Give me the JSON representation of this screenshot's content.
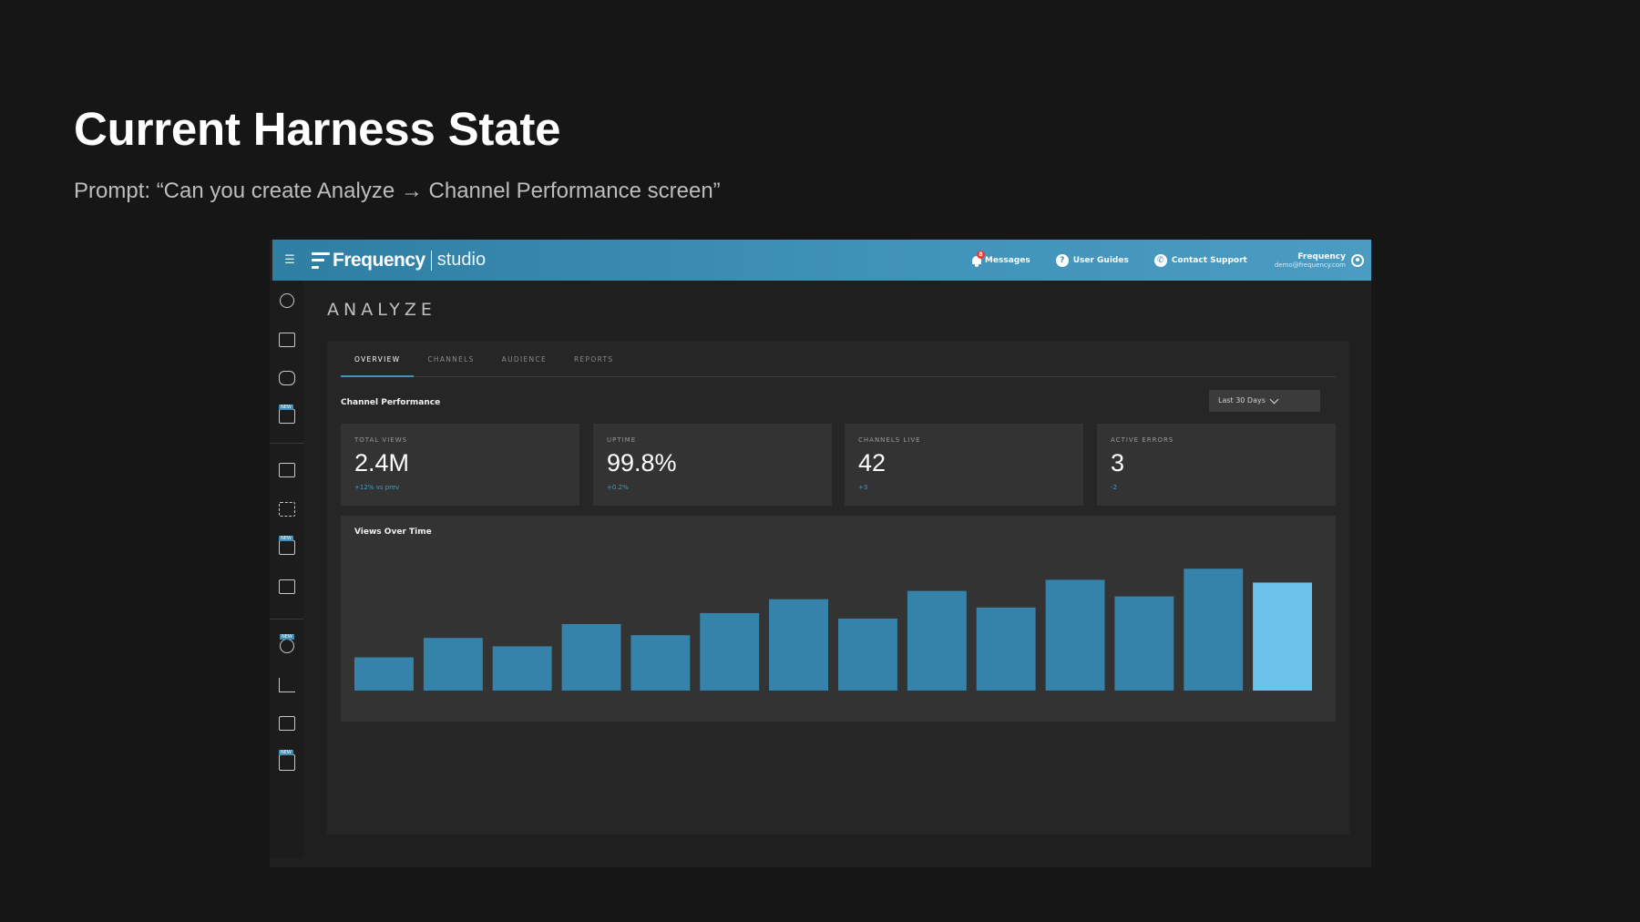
{
  "slide": {
    "title": "Current Harness State",
    "subtitle": "Prompt: “Can you create Analyze → Channel Performance screen”"
  },
  "topbar": {
    "menu_icon": "hamburger-icon",
    "brand": "Frequency",
    "brand_sub": "studio",
    "messages_label": "Messages",
    "messages_badge": "8",
    "user_guides_label": "User Guides",
    "contact_support_label": "Contact Support",
    "user_name": "Frequency",
    "user_email": "demo@frequency.com",
    "accent_color": "#3f92b8"
  },
  "page": {
    "title": "ANALYZE",
    "tabs": [
      {
        "label": "OVERVIEW",
        "active": true
      },
      {
        "label": "CHANNELS",
        "active": false
      },
      {
        "label": "AUDIENCE",
        "active": false
      },
      {
        "label": "REPORTS",
        "active": false
      }
    ],
    "section_title": "Channel Performance",
    "range_select": "Last 30 Days"
  },
  "cards": [
    {
      "label": "TOTAL VIEWS",
      "value": "2.4M",
      "delta": "+12% vs prev"
    },
    {
      "label": "UPTIME",
      "value": "99.8%",
      "delta": "+0.2%"
    },
    {
      "label": "CHANNELS LIVE",
      "value": "42",
      "delta": "+3"
    },
    {
      "label": "ACTIVE ERRORS",
      "value": "3",
      "delta": "-2"
    }
  ],
  "chart_data": {
    "type": "bar",
    "title": "Views Over Time",
    "values": [
      24,
      38,
      32,
      48,
      40,
      56,
      66,
      52,
      72,
      60,
      80,
      68,
      88,
      78
    ],
    "ylim": [
      0,
      100
    ],
    "bar_color": "#3583aa",
    "highlight_color": "#6cc2ea",
    "highlight_index": 13
  }
}
